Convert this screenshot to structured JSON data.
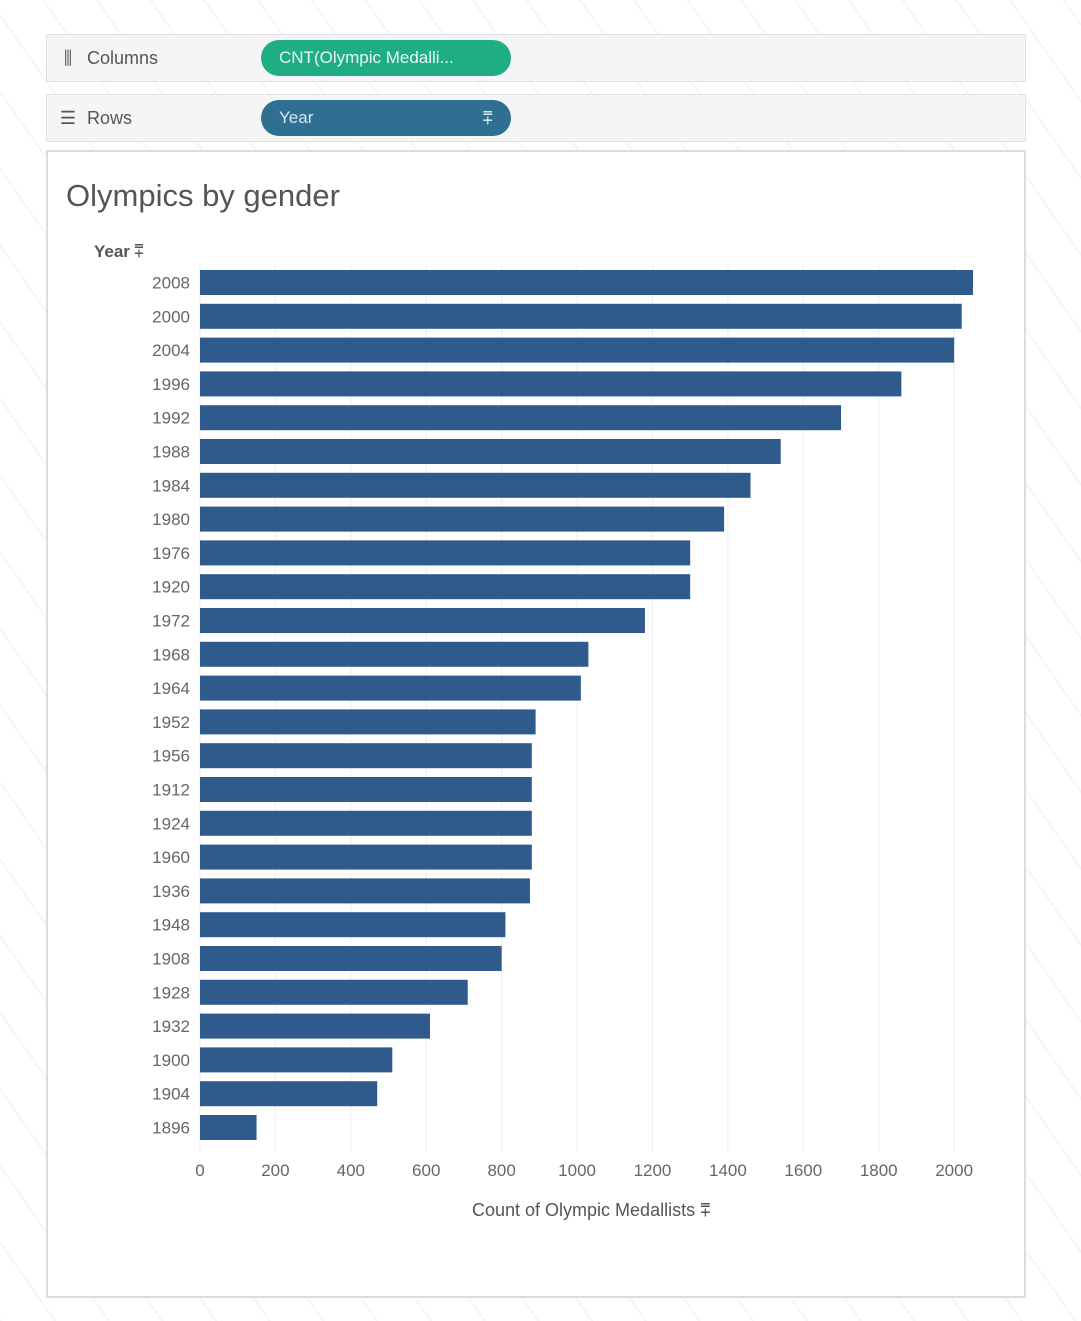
{
  "columns_shelf": {
    "label": "Columns",
    "pill": "CNT(Olympic Medalli..."
  },
  "rows_shelf": {
    "label": "Rows",
    "pill": "Year",
    "pill_sort_icon": "sort-descending-icon"
  },
  "sheet": {
    "title": "Olympics by gender",
    "row_header": "Year"
  },
  "colors": {
    "bar": "#2e5b8c",
    "column_pill": "#1fae84",
    "row_pill": "#2e6f92",
    "watermark": "certachieve"
  },
  "chart_data": {
    "type": "bar",
    "orientation": "horizontal",
    "categories": [
      "2008",
      "2000",
      "2004",
      "1996",
      "1992",
      "1988",
      "1984",
      "1980",
      "1976",
      "1920",
      "1972",
      "1968",
      "1964",
      "1952",
      "1956",
      "1912",
      "1924",
      "1960",
      "1936",
      "1948",
      "1908",
      "1928",
      "1932",
      "1900",
      "1904",
      "1896"
    ],
    "values": [
      2050,
      2020,
      2000,
      1860,
      1700,
      1540,
      1460,
      1390,
      1300,
      1300,
      1180,
      1030,
      1010,
      890,
      880,
      880,
      880,
      880,
      875,
      810,
      800,
      710,
      610,
      510,
      470,
      150
    ],
    "xlabel": "Count of Olympic Medallists",
    "ylabel": "Year",
    "xticks": [
      "0",
      "200",
      "400",
      "600",
      "800",
      "1000",
      "1200",
      "1400",
      "1600",
      "1800",
      "2000"
    ],
    "xlim": [
      0,
      2050
    ],
    "grid": "vertical gridlines",
    "sorted": "descending"
  }
}
